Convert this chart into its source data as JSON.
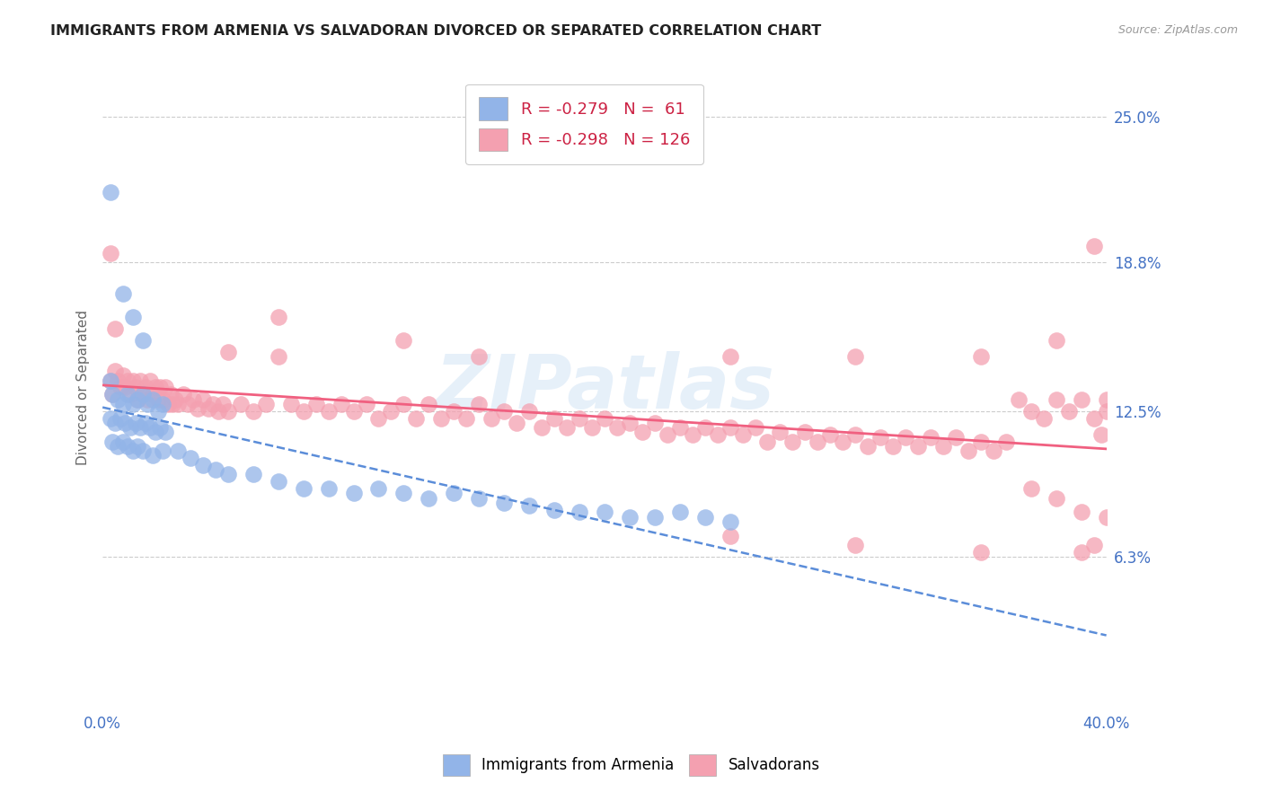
{
  "title": "IMMIGRANTS FROM ARMENIA VS SALVADORAN DIVORCED OR SEPARATED CORRELATION CHART",
  "source": "Source: ZipAtlas.com",
  "ylabel": "Divorced or Separated",
  "right_yticks": [
    6.3,
    12.5,
    18.8,
    25.0
  ],
  "armenia_color": "#92b4e8",
  "salvadoran_color": "#f4a0b0",
  "armenia_line_color": "#5b8dd9",
  "salvadoran_line_color": "#f06080",
  "watermark": "ZIPatlas",
  "ylim": [
    0.0,
    0.27
  ],
  "xlim": [
    0.0,
    0.4
  ],
  "armenia_scatter": [
    [
      0.003,
      0.218
    ],
    [
      0.008,
      0.175
    ],
    [
      0.012,
      0.165
    ],
    [
      0.016,
      0.155
    ],
    [
      0.003,
      0.138
    ],
    [
      0.004,
      0.132
    ],
    [
      0.006,
      0.13
    ],
    [
      0.008,
      0.128
    ],
    [
      0.01,
      0.132
    ],
    [
      0.012,
      0.128
    ],
    [
      0.014,
      0.13
    ],
    [
      0.016,
      0.132
    ],
    [
      0.018,
      0.128
    ],
    [
      0.02,
      0.13
    ],
    [
      0.022,
      0.125
    ],
    [
      0.024,
      0.128
    ],
    [
      0.003,
      0.122
    ],
    [
      0.005,
      0.12
    ],
    [
      0.007,
      0.122
    ],
    [
      0.009,
      0.12
    ],
    [
      0.011,
      0.118
    ],
    [
      0.013,
      0.12
    ],
    [
      0.015,
      0.118
    ],
    [
      0.017,
      0.12
    ],
    [
      0.019,
      0.118
    ],
    [
      0.021,
      0.116
    ],
    [
      0.023,
      0.118
    ],
    [
      0.025,
      0.116
    ],
    [
      0.004,
      0.112
    ],
    [
      0.006,
      0.11
    ],
    [
      0.008,
      0.112
    ],
    [
      0.01,
      0.11
    ],
    [
      0.012,
      0.108
    ],
    [
      0.014,
      0.11
    ],
    [
      0.016,
      0.108
    ],
    [
      0.02,
      0.106
    ],
    [
      0.024,
      0.108
    ],
    [
      0.03,
      0.108
    ],
    [
      0.035,
      0.105
    ],
    [
      0.04,
      0.102
    ],
    [
      0.045,
      0.1
    ],
    [
      0.05,
      0.098
    ],
    [
      0.06,
      0.098
    ],
    [
      0.07,
      0.095
    ],
    [
      0.08,
      0.092
    ],
    [
      0.09,
      0.092
    ],
    [
      0.1,
      0.09
    ],
    [
      0.11,
      0.092
    ],
    [
      0.12,
      0.09
    ],
    [
      0.13,
      0.088
    ],
    [
      0.14,
      0.09
    ],
    [
      0.15,
      0.088
    ],
    [
      0.16,
      0.086
    ],
    [
      0.17,
      0.085
    ],
    [
      0.18,
      0.083
    ],
    [
      0.19,
      0.082
    ],
    [
      0.2,
      0.082
    ],
    [
      0.21,
      0.08
    ],
    [
      0.22,
      0.08
    ],
    [
      0.23,
      0.082
    ],
    [
      0.24,
      0.08
    ],
    [
      0.25,
      0.078
    ]
  ],
  "salvadoran_scatter": [
    [
      0.003,
      0.138
    ],
    [
      0.004,
      0.132
    ],
    [
      0.005,
      0.142
    ],
    [
      0.006,
      0.138
    ],
    [
      0.007,
      0.135
    ],
    [
      0.008,
      0.14
    ],
    [
      0.009,
      0.135
    ],
    [
      0.01,
      0.138
    ],
    [
      0.011,
      0.132
    ],
    [
      0.012,
      0.138
    ],
    [
      0.013,
      0.135
    ],
    [
      0.014,
      0.13
    ],
    [
      0.015,
      0.138
    ],
    [
      0.016,
      0.132
    ],
    [
      0.017,
      0.135
    ],
    [
      0.018,
      0.13
    ],
    [
      0.019,
      0.138
    ],
    [
      0.02,
      0.132
    ],
    [
      0.021,
      0.135
    ],
    [
      0.022,
      0.13
    ],
    [
      0.023,
      0.135
    ],
    [
      0.024,
      0.13
    ],
    [
      0.025,
      0.135
    ],
    [
      0.026,
      0.128
    ],
    [
      0.027,
      0.132
    ],
    [
      0.028,
      0.128
    ],
    [
      0.029,
      0.13
    ],
    [
      0.03,
      0.128
    ],
    [
      0.032,
      0.132
    ],
    [
      0.034,
      0.128
    ],
    [
      0.036,
      0.13
    ],
    [
      0.038,
      0.126
    ],
    [
      0.04,
      0.13
    ],
    [
      0.042,
      0.126
    ],
    [
      0.044,
      0.128
    ],
    [
      0.046,
      0.125
    ],
    [
      0.048,
      0.128
    ],
    [
      0.05,
      0.125
    ],
    [
      0.055,
      0.128
    ],
    [
      0.06,
      0.125
    ],
    [
      0.065,
      0.128
    ],
    [
      0.07,
      0.165
    ],
    [
      0.075,
      0.128
    ],
    [
      0.08,
      0.125
    ],
    [
      0.085,
      0.128
    ],
    [
      0.09,
      0.125
    ],
    [
      0.095,
      0.128
    ],
    [
      0.1,
      0.125
    ],
    [
      0.105,
      0.128
    ],
    [
      0.11,
      0.122
    ],
    [
      0.115,
      0.125
    ],
    [
      0.12,
      0.128
    ],
    [
      0.125,
      0.122
    ],
    [
      0.13,
      0.128
    ],
    [
      0.135,
      0.122
    ],
    [
      0.14,
      0.125
    ],
    [
      0.145,
      0.122
    ],
    [
      0.15,
      0.128
    ],
    [
      0.155,
      0.122
    ],
    [
      0.16,
      0.125
    ],
    [
      0.165,
      0.12
    ],
    [
      0.17,
      0.125
    ],
    [
      0.175,
      0.118
    ],
    [
      0.18,
      0.122
    ],
    [
      0.185,
      0.118
    ],
    [
      0.19,
      0.122
    ],
    [
      0.195,
      0.118
    ],
    [
      0.2,
      0.122
    ],
    [
      0.205,
      0.118
    ],
    [
      0.21,
      0.12
    ],
    [
      0.215,
      0.116
    ],
    [
      0.22,
      0.12
    ],
    [
      0.225,
      0.115
    ],
    [
      0.23,
      0.118
    ],
    [
      0.235,
      0.115
    ],
    [
      0.24,
      0.118
    ],
    [
      0.245,
      0.115
    ],
    [
      0.25,
      0.118
    ],
    [
      0.255,
      0.115
    ],
    [
      0.26,
      0.118
    ],
    [
      0.265,
      0.112
    ],
    [
      0.27,
      0.116
    ],
    [
      0.275,
      0.112
    ],
    [
      0.28,
      0.116
    ],
    [
      0.285,
      0.112
    ],
    [
      0.29,
      0.115
    ],
    [
      0.295,
      0.112
    ],
    [
      0.3,
      0.115
    ],
    [
      0.305,
      0.11
    ],
    [
      0.31,
      0.114
    ],
    [
      0.315,
      0.11
    ],
    [
      0.32,
      0.114
    ],
    [
      0.325,
      0.11
    ],
    [
      0.33,
      0.114
    ],
    [
      0.335,
      0.11
    ],
    [
      0.34,
      0.114
    ],
    [
      0.345,
      0.108
    ],
    [
      0.35,
      0.112
    ],
    [
      0.355,
      0.108
    ],
    [
      0.36,
      0.112
    ],
    [
      0.003,
      0.192
    ],
    [
      0.005,
      0.16
    ],
    [
      0.05,
      0.15
    ],
    [
      0.07,
      0.148
    ],
    [
      0.12,
      0.155
    ],
    [
      0.15,
      0.148
    ],
    [
      0.25,
      0.148
    ],
    [
      0.3,
      0.148
    ],
    [
      0.35,
      0.148
    ],
    [
      0.365,
      0.13
    ],
    [
      0.37,
      0.125
    ],
    [
      0.375,
      0.122
    ],
    [
      0.38,
      0.13
    ],
    [
      0.385,
      0.125
    ],
    [
      0.39,
      0.13
    ],
    [
      0.395,
      0.122
    ],
    [
      0.398,
      0.115
    ],
    [
      0.4,
      0.13
    ],
    [
      0.38,
      0.155
    ],
    [
      0.395,
      0.195
    ],
    [
      0.4,
      0.125
    ],
    [
      0.37,
      0.092
    ],
    [
      0.38,
      0.088
    ],
    [
      0.39,
      0.082
    ],
    [
      0.4,
      0.08
    ],
    [
      0.39,
      0.065
    ],
    [
      0.395,
      0.068
    ],
    [
      0.25,
      0.072
    ],
    [
      0.3,
      0.068
    ],
    [
      0.35,
      0.065
    ]
  ]
}
